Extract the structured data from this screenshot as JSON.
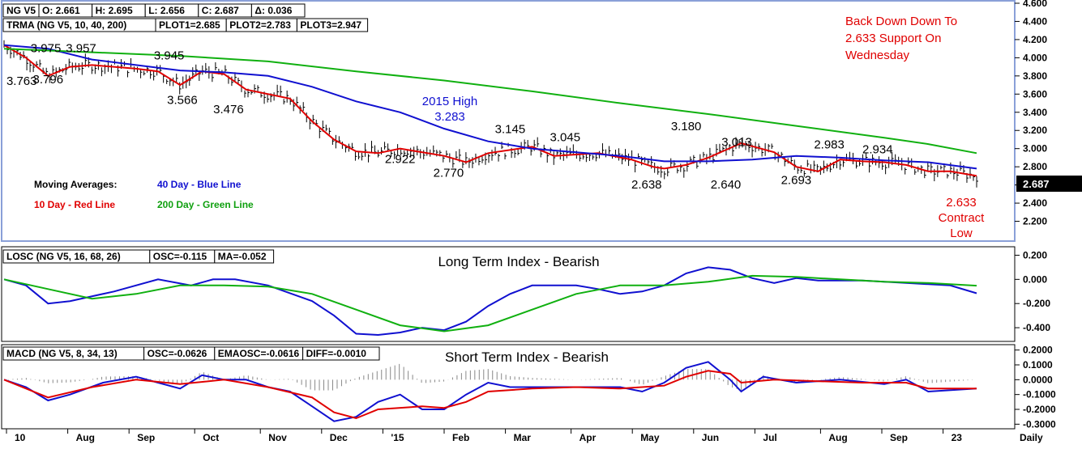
{
  "colors": {
    "blue": "#1010d0",
    "red": "#e00000",
    "green": "#10b010",
    "frame": "#8aa0d8",
    "black": "#000000",
    "price_tag_bg": "#000000",
    "price_tag_fg": "#ffffff"
  },
  "chart_data": [
    {
      "type": "ohlc",
      "header": [
        "NG V5",
        "O: 2.661",
        "H: 2.695",
        "L: 2.656",
        "C: 2.687",
        "Δ: 0.036"
      ],
      "header2": [
        "TRMA (NG V5, 10, 40, 200)",
        "PLOT1=2.685",
        "PLOT2=2.783",
        "PLOT3=2.947"
      ],
      "last_price": "2.687",
      "ylim": [
        2.0,
        4.6
      ],
      "yticks": [
        "4.600",
        "4.400",
        "4.200",
        "4.000",
        "3.800",
        "3.600",
        "3.400",
        "3.200",
        "3.000",
        "2.800",
        "2.600",
        "2.400",
        "2.200"
      ],
      "annotations": [
        {
          "t": 0.19,
          "v": 4.06,
          "text": "3.975"
        },
        {
          "t": 0.35,
          "v": 4.06,
          "text": "3.957"
        },
        {
          "t": 0.75,
          "v": 3.98,
          "text": "3.945"
        },
        {
          "t": 0.08,
          "v": 3.7,
          "text": "3.763"
        },
        {
          "t": 0.2,
          "v": 3.72,
          "text": "3.796"
        },
        {
          "t": 0.81,
          "v": 3.49,
          "text": "3.566"
        },
        {
          "t": 1.02,
          "v": 3.39,
          "text": "3.476"
        },
        {
          "t": 1.8,
          "v": 2.84,
          "text": "2.922"
        },
        {
          "t": 2.02,
          "v": 2.69,
          "text": "2.770"
        },
        {
          "t": 2.3,
          "v": 3.17,
          "text": "3.145"
        },
        {
          "t": 2.55,
          "v": 3.08,
          "text": "3.045"
        },
        {
          "t": 3.1,
          "v": 3.2,
          "text": "3.180"
        },
        {
          "t": 3.33,
          "v": 3.03,
          "text": "3.013"
        },
        {
          "t": 3.75,
          "v": 3.0,
          "text": "2.983"
        },
        {
          "t": 3.97,
          "v": 2.95,
          "text": "2.934"
        },
        {
          "t": 2.92,
          "v": 2.56,
          "text": "2.638"
        },
        {
          "t": 3.28,
          "v": 2.56,
          "text": "2.640"
        },
        {
          "t": 3.6,
          "v": 2.61,
          "text": "2.693"
        }
      ],
      "blue_annotation": [
        "2015 High",
        "3.283"
      ],
      "red_note": [
        "Back Down Down To",
        "2.633 Support On",
        "Wednesday"
      ],
      "red_low": [
        "2.633",
        "Contract",
        "Low"
      ],
      "legend": {
        "title": "Moving Averages:",
        "blue": "40 Day - Blue Line",
        "red": "10 Day - Red Line",
        "green": "200 Day - Green Line"
      },
      "series": [
        {
          "name": "10 Day",
          "color": "red",
          "points": [
            [
              0,
              4.14
            ],
            [
              0.1,
              4.0
            ],
            [
              0.2,
              3.8
            ],
            [
              0.3,
              3.9
            ],
            [
              0.4,
              3.92
            ],
            [
              0.5,
              3.9
            ],
            [
              0.6,
              3.88
            ],
            [
              0.7,
              3.85
            ],
            [
              0.8,
              3.7
            ],
            [
              0.9,
              3.85
            ],
            [
              1.0,
              3.82
            ],
            [
              1.1,
              3.65
            ],
            [
              1.3,
              3.55
            ],
            [
              1.4,
              3.3
            ],
            [
              1.5,
              3.1
            ],
            [
              1.6,
              2.97
            ],
            [
              1.7,
              2.95
            ],
            [
              1.8,
              3.0
            ],
            [
              2.0,
              2.92
            ],
            [
              2.1,
              2.85
            ],
            [
              2.2,
              2.95
            ],
            [
              2.4,
              3.02
            ],
            [
              2.5,
              2.92
            ],
            [
              2.7,
              2.95
            ],
            [
              2.85,
              2.88
            ],
            [
              2.95,
              2.8
            ],
            [
              3.0,
              2.78
            ],
            [
              3.1,
              2.82
            ],
            [
              3.2,
              2.9
            ],
            [
              3.35,
              3.06
            ],
            [
              3.5,
              2.96
            ],
            [
              3.6,
              2.8
            ],
            [
              3.7,
              2.75
            ],
            [
              3.8,
              2.88
            ],
            [
              3.9,
              2.86
            ],
            [
              4.0,
              2.85
            ],
            [
              4.1,
              2.82
            ],
            [
              4.2,
              2.75
            ],
            [
              4.3,
              2.75
            ],
            [
              4.42,
              2.7
            ]
          ]
        },
        {
          "name": "40 Day",
          "color": "blue",
          "points": [
            [
              0,
              4.14
            ],
            [
              0.2,
              4.1
            ],
            [
              0.4,
              3.98
            ],
            [
              0.6,
              3.92
            ],
            [
              0.8,
              3.86
            ],
            [
              1.0,
              3.84
            ],
            [
              1.2,
              3.8
            ],
            [
              1.4,
              3.68
            ],
            [
              1.6,
              3.52
            ],
            [
              1.8,
              3.4
            ],
            [
              2.0,
              3.22
            ],
            [
              2.2,
              3.08
            ],
            [
              2.4,
              3.0
            ],
            [
              2.6,
              2.96
            ],
            [
              2.8,
              2.92
            ],
            [
              3.0,
              2.86
            ],
            [
              3.2,
              2.86
            ],
            [
              3.4,
              2.88
            ],
            [
              3.6,
              2.92
            ],
            [
              3.8,
              2.9
            ],
            [
              4.0,
              2.87
            ],
            [
              4.2,
              2.85
            ],
            [
              4.42,
              2.78
            ]
          ]
        },
        {
          "name": "200 Day",
          "color": "green",
          "points": [
            [
              0,
              4.1
            ],
            [
              0.4,
              4.06
            ],
            [
              0.8,
              4.02
            ],
            [
              1.2,
              3.96
            ],
            [
              1.6,
              3.85
            ],
            [
              2.0,
              3.75
            ],
            [
              2.4,
              3.63
            ],
            [
              2.8,
              3.5
            ],
            [
              3.2,
              3.38
            ],
            [
              3.6,
              3.25
            ],
            [
              4.0,
              3.12
            ],
            [
              4.2,
              3.05
            ],
            [
              4.42,
              2.95
            ]
          ]
        }
      ]
    },
    {
      "type": "line",
      "header": [
        "LOSC (NG V5, 16, 68, 26)",
        "OSC=-0.115",
        "MA=-0.052"
      ],
      "title": "Long Term Index - Bearish",
      "ylim": [
        -0.5,
        0.25
      ],
      "yticks": [
        "0.200",
        "0.000",
        "-0.200",
        "-0.400"
      ],
      "series": [
        {
          "color": "blue",
          "points": [
            [
              0,
              0.0
            ],
            [
              0.1,
              -0.05
            ],
            [
              0.2,
              -0.2
            ],
            [
              0.3,
              -0.18
            ],
            [
              0.5,
              -0.1
            ],
            [
              0.7,
              0.0
            ],
            [
              0.85,
              -0.05
            ],
            [
              0.95,
              0.0
            ],
            [
              1.05,
              0.0
            ],
            [
              1.2,
              -0.05
            ],
            [
              1.4,
              -0.18
            ],
            [
              1.5,
              -0.3
            ],
            [
              1.6,
              -0.45
            ],
            [
              1.7,
              -0.46
            ],
            [
              1.8,
              -0.44
            ],
            [
              1.9,
              -0.4
            ],
            [
              2.0,
              -0.42
            ],
            [
              2.1,
              -0.35
            ],
            [
              2.2,
              -0.22
            ],
            [
              2.3,
              -0.12
            ],
            [
              2.4,
              -0.05
            ],
            [
              2.6,
              -0.05
            ],
            [
              2.7,
              -0.08
            ],
            [
              2.8,
              -0.12
            ],
            [
              2.9,
              -0.1
            ],
            [
              3.0,
              -0.05
            ],
            [
              3.1,
              0.05
            ],
            [
              3.2,
              0.1
            ],
            [
              3.3,
              0.08
            ],
            [
              3.4,
              0.01
            ],
            [
              3.5,
              -0.03
            ],
            [
              3.6,
              0.01
            ],
            [
              3.7,
              -0.01
            ],
            [
              3.9,
              -0.01
            ],
            [
              4.1,
              -0.03
            ],
            [
              4.3,
              -0.05
            ],
            [
              4.42,
              -0.115
            ]
          ]
        },
        {
          "color": "green",
          "points": [
            [
              0,
              0.0
            ],
            [
              0.2,
              -0.08
            ],
            [
              0.4,
              -0.16
            ],
            [
              0.6,
              -0.12
            ],
            [
              0.8,
              -0.05
            ],
            [
              1.0,
              -0.05
            ],
            [
              1.2,
              -0.06
            ],
            [
              1.4,
              -0.12
            ],
            [
              1.6,
              -0.25
            ],
            [
              1.8,
              -0.38
            ],
            [
              2.0,
              -0.43
            ],
            [
              2.2,
              -0.38
            ],
            [
              2.4,
              -0.25
            ],
            [
              2.6,
              -0.12
            ],
            [
              2.8,
              -0.05
            ],
            [
              3.0,
              -0.05
            ],
            [
              3.2,
              -0.02
            ],
            [
              3.4,
              0.03
            ],
            [
              3.6,
              0.02
            ],
            [
              3.8,
              0.0
            ],
            [
              4.0,
              -0.02
            ],
            [
              4.2,
              -0.03
            ],
            [
              4.42,
              -0.052
            ]
          ]
        }
      ]
    },
    {
      "type": "line",
      "header": [
        "MACD (NG V5, 8, 34, 13)",
        "OSC=-0.0626",
        "EMAOSC=-0.0616",
        "DIFF=-0.0010"
      ],
      "title": "Short Term Index - Bearish",
      "ylim": [
        -0.32,
        0.22
      ],
      "yticks": [
        "0.2000",
        "0.1000",
        "0.0000",
        "-0.1000",
        "-0.2000",
        "-0.3000"
      ],
      "series": [
        {
          "color": "blue",
          "points": [
            [
              0,
              0.0
            ],
            [
              0.1,
              -0.05
            ],
            [
              0.2,
              -0.14
            ],
            [
              0.3,
              -0.1
            ],
            [
              0.45,
              -0.02
            ],
            [
              0.6,
              0.02
            ],
            [
              0.7,
              -0.02
            ],
            [
              0.8,
              -0.06
            ],
            [
              0.9,
              0.03
            ],
            [
              1.0,
              0.0
            ],
            [
              1.1,
              0.0
            ],
            [
              1.2,
              -0.05
            ],
            [
              1.3,
              -0.08
            ],
            [
              1.4,
              -0.18
            ],
            [
              1.5,
              -0.28
            ],
            [
              1.6,
              -0.25
            ],
            [
              1.7,
              -0.15
            ],
            [
              1.8,
              -0.1
            ],
            [
              1.9,
              -0.2
            ],
            [
              2.0,
              -0.2
            ],
            [
              2.1,
              -0.1
            ],
            [
              2.2,
              -0.02
            ],
            [
              2.3,
              -0.05
            ],
            [
              2.4,
              -0.05
            ],
            [
              2.6,
              -0.05
            ],
            [
              2.8,
              -0.05
            ],
            [
              2.9,
              -0.08
            ],
            [
              3.0,
              -0.02
            ],
            [
              3.1,
              0.08
            ],
            [
              3.2,
              0.12
            ],
            [
              3.3,
              0.0
            ],
            [
              3.35,
              -0.08
            ],
            [
              3.45,
              0.02
            ],
            [
              3.6,
              -0.02
            ],
            [
              3.8,
              0.0
            ],
            [
              4.0,
              -0.03
            ],
            [
              4.1,
              0.0
            ],
            [
              4.2,
              -0.08
            ],
            [
              4.42,
              -0.06
            ]
          ]
        },
        {
          "color": "red",
          "points": [
            [
              0,
              0.0
            ],
            [
              0.2,
              -0.12
            ],
            [
              0.4,
              -0.05
            ],
            [
              0.6,
              0.0
            ],
            [
              0.8,
              -0.03
            ],
            [
              1.0,
              0.0
            ],
            [
              1.2,
              -0.05
            ],
            [
              1.4,
              -0.12
            ],
            [
              1.5,
              -0.22
            ],
            [
              1.6,
              -0.26
            ],
            [
              1.7,
              -0.2
            ],
            [
              1.9,
              -0.18
            ],
            [
              2.0,
              -0.19
            ],
            [
              2.1,
              -0.15
            ],
            [
              2.2,
              -0.08
            ],
            [
              2.4,
              -0.06
            ],
            [
              2.6,
              -0.05
            ],
            [
              2.8,
              -0.06
            ],
            [
              3.0,
              -0.04
            ],
            [
              3.1,
              0.02
            ],
            [
              3.2,
              0.06
            ],
            [
              3.3,
              0.04
            ],
            [
              3.35,
              -0.02
            ],
            [
              3.5,
              0.0
            ],
            [
              3.7,
              -0.01
            ],
            [
              3.9,
              -0.02
            ],
            [
              4.1,
              -0.02
            ],
            [
              4.2,
              -0.06
            ],
            [
              4.42,
              -0.06
            ]
          ]
        }
      ]
    }
  ],
  "x_axis": {
    "labels": [
      {
        "t": 0.0,
        "text": "10"
      },
      {
        "t": 0.14,
        "text": "Aug"
      },
      {
        "t": 0.28,
        "text": "Sep"
      },
      {
        "t": 0.43,
        "text": "Oct"
      },
      {
        "t": 0.58,
        "text": "Nov"
      },
      {
        "t": 0.72,
        "text": "Dec"
      },
      {
        "t": 0.86,
        "text": "'15"
      },
      {
        "t": 1.0,
        "text": "Feb"
      },
      {
        "t": 1.14,
        "text": "Mar"
      },
      {
        "t": 1.29,
        "text": "Apr"
      },
      {
        "t": 1.43,
        "text": "May"
      },
      {
        "t": 1.57,
        "text": "Jun"
      },
      {
        "t": 1.71,
        "text": "Jul"
      },
      {
        "t": 1.86,
        "text": "Aug"
      },
      {
        "t": 2.0,
        "text": "Sep"
      },
      {
        "t": 2.14,
        "text": "23"
      }
    ],
    "daily_label": "Daily"
  }
}
